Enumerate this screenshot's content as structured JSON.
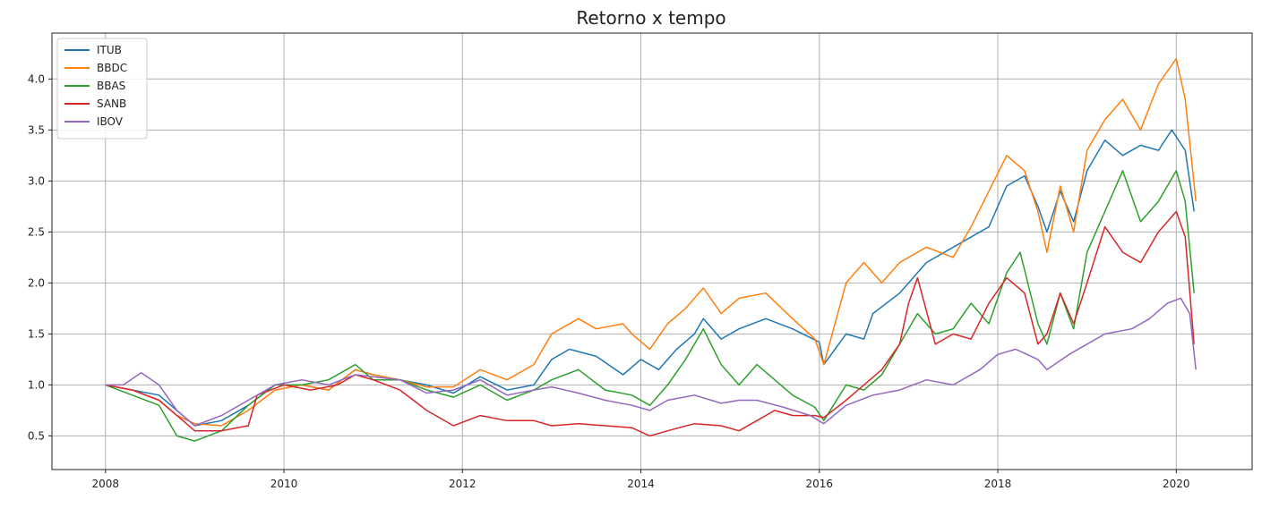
{
  "chart_data": {
    "type": "line",
    "title": "Retorno x tempo",
    "xlabel": "",
    "ylabel": "",
    "xlim": [
      2007.4,
      2020.85
    ],
    "ylim": [
      0.17,
      4.45
    ],
    "x_ticks": [
      "2008",
      "2010",
      "2012",
      "2014",
      "2016",
      "2018",
      "2020"
    ],
    "y_ticks": [
      "0.5",
      "1.0",
      "1.5",
      "2.0",
      "2.5",
      "3.0",
      "3.5",
      "4.0"
    ],
    "grid": true,
    "legend_position": "top-left",
    "series": [
      {
        "name": "ITUB",
        "color": "#1f77b4",
        "points": [
          [
            2008.0,
            1.0
          ],
          [
            2008.3,
            0.95
          ],
          [
            2008.6,
            0.9
          ],
          [
            2008.8,
            0.75
          ],
          [
            2009.0,
            0.6
          ],
          [
            2009.3,
            0.65
          ],
          [
            2009.6,
            0.8
          ],
          [
            2009.9,
            1.0
          ],
          [
            2010.2,
            1.0
          ],
          [
            2010.5,
            0.95
          ],
          [
            2010.8,
            1.15
          ],
          [
            2011.0,
            1.1
          ],
          [
            2011.3,
            1.05
          ],
          [
            2011.6,
            1.0
          ],
          [
            2011.9,
            0.92
          ],
          [
            2012.2,
            1.08
          ],
          [
            2012.5,
            0.95
          ],
          [
            2012.8,
            1.0
          ],
          [
            2013.0,
            1.25
          ],
          [
            2013.2,
            1.35
          ],
          [
            2013.5,
            1.28
          ],
          [
            2013.8,
            1.1
          ],
          [
            2014.0,
            1.25
          ],
          [
            2014.2,
            1.15
          ],
          [
            2014.4,
            1.35
          ],
          [
            2014.6,
            1.5
          ],
          [
            2014.7,
            1.65
          ],
          [
            2014.9,
            1.45
          ],
          [
            2015.1,
            1.55
          ],
          [
            2015.4,
            1.65
          ],
          [
            2015.7,
            1.55
          ],
          [
            2016.0,
            1.42
          ],
          [
            2016.05,
            1.2
          ],
          [
            2016.3,
            1.5
          ],
          [
            2016.5,
            1.45
          ],
          [
            2016.6,
            1.7
          ],
          [
            2016.9,
            1.9
          ],
          [
            2017.2,
            2.2
          ],
          [
            2017.4,
            2.3
          ],
          [
            2017.6,
            2.4
          ],
          [
            2017.9,
            2.55
          ],
          [
            2018.1,
            2.95
          ],
          [
            2018.3,
            3.05
          ],
          [
            2018.45,
            2.75
          ],
          [
            2018.55,
            2.5
          ],
          [
            2018.7,
            2.9
          ],
          [
            2018.85,
            2.6
          ],
          [
            2019.0,
            3.1
          ],
          [
            2019.2,
            3.4
          ],
          [
            2019.4,
            3.25
          ],
          [
            2019.6,
            3.35
          ],
          [
            2019.8,
            3.3
          ],
          [
            2019.95,
            3.5
          ],
          [
            2020.1,
            3.3
          ],
          [
            2020.2,
            2.7
          ]
        ]
      },
      {
        "name": "BBDC",
        "color": "#ff7f0e",
        "points": [
          [
            2008.0,
            1.0
          ],
          [
            2008.3,
            0.95
          ],
          [
            2008.6,
            0.85
          ],
          [
            2008.8,
            0.7
          ],
          [
            2009.0,
            0.62
          ],
          [
            2009.3,
            0.6
          ],
          [
            2009.6,
            0.75
          ],
          [
            2009.9,
            0.95
          ],
          [
            2010.2,
            1.0
          ],
          [
            2010.5,
            0.95
          ],
          [
            2010.8,
            1.15
          ],
          [
            2011.0,
            1.1
          ],
          [
            2011.3,
            1.05
          ],
          [
            2011.6,
            0.98
          ],
          [
            2011.9,
            0.98
          ],
          [
            2012.2,
            1.15
          ],
          [
            2012.5,
            1.05
          ],
          [
            2012.8,
            1.2
          ],
          [
            2013.0,
            1.5
          ],
          [
            2013.3,
            1.65
          ],
          [
            2013.5,
            1.55
          ],
          [
            2013.8,
            1.6
          ],
          [
            2013.9,
            1.5
          ],
          [
            2014.1,
            1.35
          ],
          [
            2014.3,
            1.6
          ],
          [
            2014.5,
            1.75
          ],
          [
            2014.7,
            1.95
          ],
          [
            2014.9,
            1.7
          ],
          [
            2015.1,
            1.85
          ],
          [
            2015.4,
            1.9
          ],
          [
            2015.7,
            1.65
          ],
          [
            2015.95,
            1.45
          ],
          [
            2016.05,
            1.2
          ],
          [
            2016.3,
            2.0
          ],
          [
            2016.5,
            2.2
          ],
          [
            2016.7,
            2.0
          ],
          [
            2016.9,
            2.2
          ],
          [
            2017.2,
            2.35
          ],
          [
            2017.5,
            2.25
          ],
          [
            2017.7,
            2.55
          ],
          [
            2017.9,
            2.9
          ],
          [
            2018.1,
            3.25
          ],
          [
            2018.3,
            3.1
          ],
          [
            2018.45,
            2.7
          ],
          [
            2018.55,
            2.3
          ],
          [
            2018.7,
            2.95
          ],
          [
            2018.85,
            2.5
          ],
          [
            2019.0,
            3.3
          ],
          [
            2019.2,
            3.6
          ],
          [
            2019.4,
            3.8
          ],
          [
            2019.6,
            3.5
          ],
          [
            2019.8,
            3.95
          ],
          [
            2020.0,
            4.2
          ],
          [
            2020.1,
            3.8
          ],
          [
            2020.22,
            2.8
          ]
        ]
      },
      {
        "name": "BBAS",
        "color": "#2ca02c",
        "points": [
          [
            2008.0,
            1.0
          ],
          [
            2008.3,
            0.9
          ],
          [
            2008.6,
            0.8
          ],
          [
            2008.8,
            0.5
          ],
          [
            2009.0,
            0.45
          ],
          [
            2009.3,
            0.55
          ],
          [
            2009.6,
            0.8
          ],
          [
            2009.9,
            1.0
          ],
          [
            2010.2,
            1.0
          ],
          [
            2010.5,
            1.05
          ],
          [
            2010.8,
            1.2
          ],
          [
            2011.0,
            1.05
          ],
          [
            2011.3,
            1.05
          ],
          [
            2011.6,
            0.95
          ],
          [
            2011.9,
            0.88
          ],
          [
            2012.2,
            1.0
          ],
          [
            2012.5,
            0.85
          ],
          [
            2012.8,
            0.95
          ],
          [
            2013.0,
            1.05
          ],
          [
            2013.3,
            1.15
          ],
          [
            2013.6,
            0.95
          ],
          [
            2013.9,
            0.9
          ],
          [
            2014.1,
            0.8
          ],
          [
            2014.3,
            1.0
          ],
          [
            2014.5,
            1.25
          ],
          [
            2014.7,
            1.55
          ],
          [
            2014.9,
            1.2
          ],
          [
            2015.1,
            1.0
          ],
          [
            2015.3,
            1.2
          ],
          [
            2015.5,
            1.05
          ],
          [
            2015.7,
            0.9
          ],
          [
            2015.95,
            0.78
          ],
          [
            2016.05,
            0.65
          ],
          [
            2016.3,
            1.0
          ],
          [
            2016.5,
            0.95
          ],
          [
            2016.7,
            1.1
          ],
          [
            2016.9,
            1.4
          ],
          [
            2017.1,
            1.7
          ],
          [
            2017.3,
            1.5
          ],
          [
            2017.5,
            1.55
          ],
          [
            2017.7,
            1.8
          ],
          [
            2017.9,
            1.6
          ],
          [
            2018.1,
            2.1
          ],
          [
            2018.25,
            2.3
          ],
          [
            2018.45,
            1.6
          ],
          [
            2018.55,
            1.4
          ],
          [
            2018.7,
            1.9
          ],
          [
            2018.85,
            1.55
          ],
          [
            2019.0,
            2.3
          ],
          [
            2019.2,
            2.7
          ],
          [
            2019.4,
            3.1
          ],
          [
            2019.6,
            2.6
          ],
          [
            2019.8,
            2.8
          ],
          [
            2020.0,
            3.1
          ],
          [
            2020.1,
            2.8
          ],
          [
            2020.2,
            1.9
          ]
        ]
      },
      {
        "name": "SANB",
        "color": "#d62728",
        "points": [
          [
            2008.0,
            1.0
          ],
          [
            2008.3,
            0.95
          ],
          [
            2008.6,
            0.85
          ],
          [
            2008.8,
            0.7
          ],
          [
            2009.0,
            0.55
          ],
          [
            2009.3,
            0.55
          ],
          [
            2009.6,
            0.6
          ],
          [
            2009.7,
            0.9
          ],
          [
            2010.0,
            1.0
          ],
          [
            2010.3,
            0.95
          ],
          [
            2010.6,
            1.0
          ],
          [
            2010.8,
            1.1
          ],
          [
            2011.0,
            1.05
          ],
          [
            2011.3,
            0.95
          ],
          [
            2011.6,
            0.75
          ],
          [
            2011.9,
            0.6
          ],
          [
            2012.2,
            0.7
          ],
          [
            2012.5,
            0.65
          ],
          [
            2012.8,
            0.65
          ],
          [
            2013.0,
            0.6
          ],
          [
            2013.3,
            0.62
          ],
          [
            2013.6,
            0.6
          ],
          [
            2013.9,
            0.58
          ],
          [
            2014.1,
            0.5
          ],
          [
            2014.3,
            0.55
          ],
          [
            2014.6,
            0.62
          ],
          [
            2014.9,
            0.6
          ],
          [
            2015.1,
            0.55
          ],
          [
            2015.3,
            0.65
          ],
          [
            2015.5,
            0.75
          ],
          [
            2015.7,
            0.7
          ],
          [
            2015.95,
            0.7
          ],
          [
            2016.05,
            0.68
          ],
          [
            2016.3,
            0.85
          ],
          [
            2016.5,
            1.0
          ],
          [
            2016.7,
            1.15
          ],
          [
            2016.9,
            1.4
          ],
          [
            2017.0,
            1.8
          ],
          [
            2017.1,
            2.05
          ],
          [
            2017.3,
            1.4
          ],
          [
            2017.5,
            1.5
          ],
          [
            2017.7,
            1.45
          ],
          [
            2017.9,
            1.8
          ],
          [
            2018.1,
            2.05
          ],
          [
            2018.3,
            1.9
          ],
          [
            2018.45,
            1.4
          ],
          [
            2018.55,
            1.5
          ],
          [
            2018.7,
            1.9
          ],
          [
            2018.85,
            1.6
          ],
          [
            2019.0,
            2.0
          ],
          [
            2019.2,
            2.55
          ],
          [
            2019.4,
            2.3
          ],
          [
            2019.6,
            2.2
          ],
          [
            2019.8,
            2.5
          ],
          [
            2020.0,
            2.7
          ],
          [
            2020.1,
            2.45
          ],
          [
            2020.2,
            1.4
          ]
        ]
      },
      {
        "name": "IBOV",
        "color": "#9467bd",
        "points": [
          [
            2008.0,
            1.0
          ],
          [
            2008.2,
            1.0
          ],
          [
            2008.4,
            1.12
          ],
          [
            2008.6,
            1.0
          ],
          [
            2008.8,
            0.75
          ],
          [
            2009.0,
            0.6
          ],
          [
            2009.3,
            0.7
          ],
          [
            2009.6,
            0.85
          ],
          [
            2009.9,
            1.0
          ],
          [
            2010.2,
            1.05
          ],
          [
            2010.5,
            1.0
          ],
          [
            2010.8,
            1.1
          ],
          [
            2011.0,
            1.08
          ],
          [
            2011.3,
            1.05
          ],
          [
            2011.6,
            0.92
          ],
          [
            2011.9,
            0.95
          ],
          [
            2012.2,
            1.05
          ],
          [
            2012.5,
            0.9
          ],
          [
            2012.8,
            0.95
          ],
          [
            2013.0,
            0.98
          ],
          [
            2013.3,
            0.92
          ],
          [
            2013.6,
            0.85
          ],
          [
            2013.9,
            0.8
          ],
          [
            2014.1,
            0.75
          ],
          [
            2014.3,
            0.85
          ],
          [
            2014.6,
            0.9
          ],
          [
            2014.9,
            0.82
          ],
          [
            2015.1,
            0.85
          ],
          [
            2015.3,
            0.85
          ],
          [
            2015.6,
            0.78
          ],
          [
            2015.9,
            0.7
          ],
          [
            2016.05,
            0.62
          ],
          [
            2016.3,
            0.8
          ],
          [
            2016.6,
            0.9
          ],
          [
            2016.9,
            0.95
          ],
          [
            2017.2,
            1.05
          ],
          [
            2017.5,
            1.0
          ],
          [
            2017.8,
            1.15
          ],
          [
            2018.0,
            1.3
          ],
          [
            2018.2,
            1.35
          ],
          [
            2018.45,
            1.25
          ],
          [
            2018.55,
            1.15
          ],
          [
            2018.8,
            1.3
          ],
          [
            2019.0,
            1.4
          ],
          [
            2019.2,
            1.5
          ],
          [
            2019.5,
            1.55
          ],
          [
            2019.7,
            1.65
          ],
          [
            2019.9,
            1.8
          ],
          [
            2020.05,
            1.85
          ],
          [
            2020.15,
            1.7
          ],
          [
            2020.22,
            1.15
          ]
        ]
      }
    ]
  }
}
